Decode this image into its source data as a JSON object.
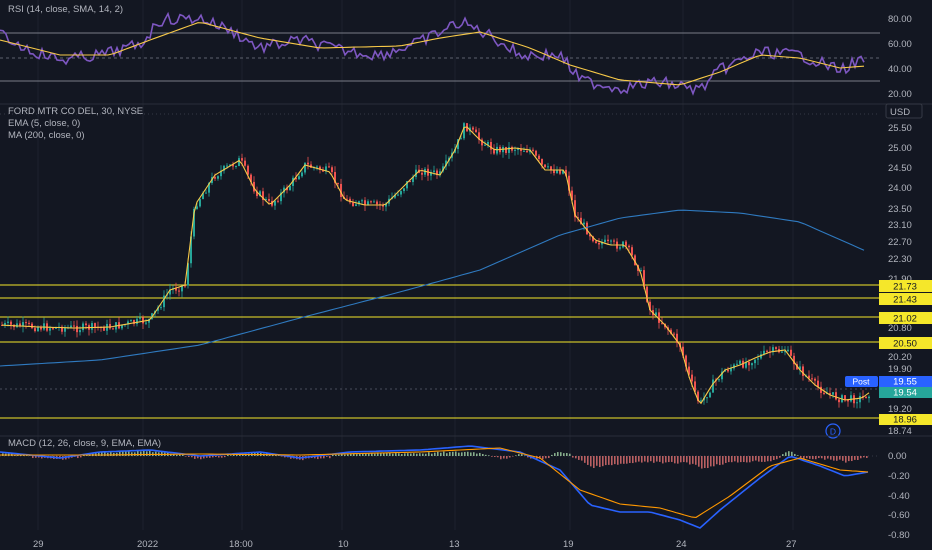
{
  "rsi_pane": {
    "label": "RSI (14, close, SMA, 14, 2)",
    "axis_ticks": [
      "80.00",
      "60.00",
      "40.00",
      "20.00"
    ]
  },
  "price_pane": {
    "symbol_title": "FORD MTR CO DEL, 30, NYSE",
    "indicators": [
      "EMA (5, close, 0)",
      "MA (200, close, 0)"
    ],
    "currency": "USD",
    "axis_ticks": [
      "25.50",
      "25.00",
      "24.50",
      "24.00",
      "23.50",
      "23.10",
      "22.70",
      "22.30",
      "21.90",
      "20.80",
      "20.50",
      "20.20",
      "19.90",
      "19.55",
      "19.20",
      "18.74"
    ],
    "level_tags": [
      "21.73",
      "21.43",
      "21.02",
      "20.50",
      "18.96"
    ],
    "post_badge": "Post",
    "last_price": "19.55",
    "second_price": "19.54",
    "dividend_marker": "D"
  },
  "macd_pane": {
    "label": "MACD (12, 26, close, 9, EMA, EMA)",
    "axis_ticks": [
      "0.00",
      "-0.20",
      "-0.40",
      "-0.60",
      "-0.80"
    ]
  },
  "time_axis": {
    "labels": [
      "29",
      "2022",
      "18:00",
      "10",
      "13",
      "19",
      "24",
      "27"
    ]
  },
  "colors": {
    "background": "#131722",
    "up_candle": "#26a69a",
    "down_candle": "#ef5350",
    "ema_line": "#f7c948",
    "ma_line": "#2f7ac0",
    "rsi_line": "#7e57c2",
    "macd_line": "#2962ff",
    "signal_line": "#ff9800",
    "level_line": "#f5e72a",
    "post_badge": "#2962ff"
  }
}
